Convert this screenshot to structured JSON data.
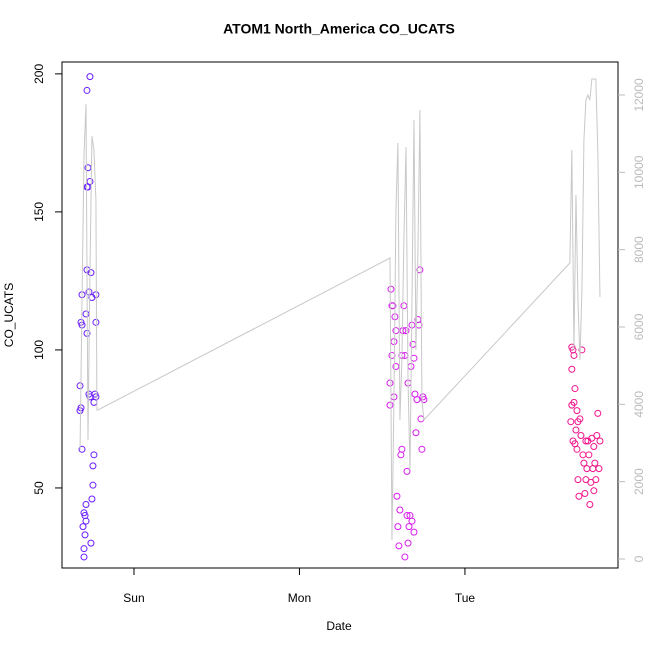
{
  "chart_data": {
    "type": "scatter",
    "title": "ATOM1 North_America CO_UCATS",
    "x_label": "Date",
    "y_label": "CO_UCATS",
    "xlim": [
      -0.435,
      2.925
    ],
    "xticks": [
      {
        "value": 0,
        "label": "Sun"
      },
      {
        "value": 1,
        "label": "Mon"
      },
      {
        "value": 2,
        "label": "Tue"
      }
    ],
    "ylim": [
      21.0,
      204.3
    ],
    "yticks": [
      50,
      100,
      150,
      200
    ],
    "y2lim": [
      -233,
      12853
    ],
    "y2ticks": [
      0,
      2000,
      4000,
      6000,
      8000,
      10000,
      12000
    ],
    "series": [
      {
        "color": "#6a1cff",
        "x": [
          -0.326,
          -0.32,
          -0.326,
          -0.314,
          -0.32,
          -0.314,
          -0.314,
          -0.308,
          -0.302,
          -0.302,
          -0.302,
          -0.296,
          -0.29,
          -0.29,
          -0.296,
          -0.284,
          -0.29,
          -0.284,
          -0.284,
          -0.278,
          -0.278,
          -0.284,
          -0.272,
          -0.272,
          -0.266,
          -0.266,
          -0.266,
          -0.26,
          -0.254,
          -0.26,
          -0.254,
          -0.248,
          -0.248,
          -0.242,
          -0.242,
          -0.236,
          -0.23,
          -0.23,
          -0.23
        ],
        "values": [
          87,
          79,
          78,
          109,
          110,
          120,
          64,
          36,
          28,
          25,
          41,
          40,
          44,
          38,
          33,
          106,
          113,
          129,
          159,
          159,
          166,
          194,
          121,
          84,
          83,
          199,
          161,
          128,
          119,
          30,
          46,
          51,
          58,
          62,
          81,
          84,
          83,
          120,
          110
        ]
      },
      {
        "color": "#d91cf0",
        "x": [
          1.547,
          1.547,
          1.553,
          1.559,
          1.565,
          1.559,
          1.571,
          1.577,
          1.583,
          1.571,
          1.583,
          1.589,
          1.595,
          1.601,
          1.607,
          1.613,
          1.619,
          1.619,
          1.625,
          1.631,
          1.637,
          1.644,
          1.65,
          1.65,
          1.656,
          1.662,
          1.668,
          1.674,
          1.68,
          1.686,
          1.692,
          1.698,
          1.704,
          1.71,
          1.716,
          1.722,
          1.728,
          1.734,
          1.74,
          1.746,
          1.752,
          1.637,
          1.68,
          1.692,
          1.656
        ],
        "values": [
          80,
          88,
          122,
          116,
          116,
          98,
          103,
          112,
          107,
          83,
          94,
          47,
          36,
          29,
          42,
          62,
          64,
          98,
          107,
          116,
          98,
          107,
          56,
          40,
          30,
          36,
          40,
          94,
          109,
          102,
          97,
          84,
          70,
          82,
          111,
          109,
          129,
          75,
          64,
          83,
          82,
          25,
          38,
          34,
          88
        ]
      },
      {
        "color": "#f0148c",
        "x": [
          2.646,
          2.653,
          2.659,
          2.646,
          2.64,
          2.646,
          2.659,
          2.653,
          2.665,
          2.677,
          2.683,
          2.689,
          2.695,
          2.701,
          2.707,
          2.713,
          2.719,
          2.725,
          2.731,
          2.737,
          2.743,
          2.749,
          2.755,
          2.761,
          2.767,
          2.773,
          2.779,
          2.785,
          2.791,
          2.797,
          2.803,
          2.81,
          2.816,
          2.677,
          2.683,
          2.665,
          2.671,
          2.731,
          2.779
        ],
        "values": [
          101,
          100,
          98,
          93,
          74,
          80,
          81,
          67,
          66,
          64,
          53,
          47,
          75,
          69,
          100,
          62,
          59,
          48,
          53,
          57,
          67,
          62,
          44,
          52,
          68,
          57,
          49,
          59,
          53,
          69,
          77,
          57,
          67,
          78,
          74,
          86,
          71,
          67,
          65
        ]
      },
      {
        "type": "line",
        "axis": "y2",
        "color": "#c8c8c8",
        "x": [
          -0.326,
          -0.314,
          -0.302,
          -0.29,
          -0.278,
          -0.266,
          -0.254,
          -0.242,
          -0.23,
          -0.224,
          -0.218,
          1.547,
          1.559,
          1.571,
          1.583,
          1.595,
          1.607,
          1.619,
          1.631,
          1.644,
          1.656,
          1.668,
          1.68,
          1.692,
          1.704,
          1.716,
          1.728,
          1.74,
          1.752,
          2.634,
          2.646,
          2.659,
          2.671,
          2.683,
          2.695,
          2.707,
          2.719,
          2.731,
          2.743,
          2.755,
          2.767,
          2.791,
          2.803,
          2.816
        ],
        "values": [
          2819,
          6698,
          10448,
          11767,
          3077,
          7448,
          10939,
          10577,
          9284,
          3853,
          3853,
          7784,
          491,
          4112,
          9025,
          10758,
          3595,
          5146,
          8249,
          10654,
          4629,
          2302,
          6698,
          11353,
          5405,
          7991,
          11611,
          4112,
          3595,
          7655,
          10577,
          5405,
          9413,
          6698,
          5146,
          6956,
          10835,
          11870,
          11999,
          11870,
          12413,
          12413,
          10577,
          6775
        ]
      }
    ]
  }
}
